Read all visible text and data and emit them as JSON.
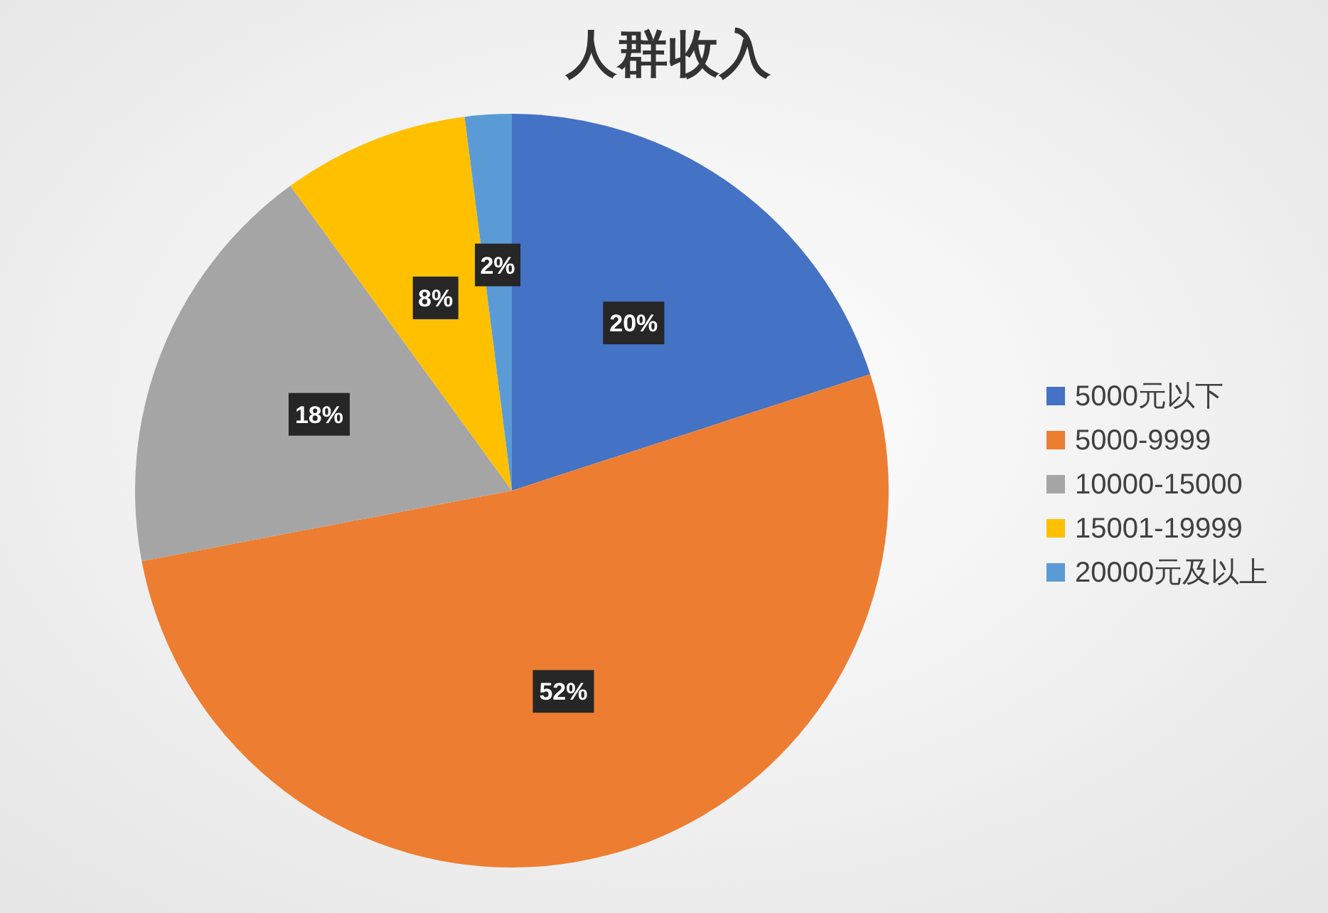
{
  "chart_data": {
    "type": "pie",
    "title": "人群收入",
    "categories": [
      "5000元以下",
      "5000-9999",
      "10000-15000",
      "15001-19999",
      "20000元及以上"
    ],
    "values": [
      20,
      52,
      18,
      8,
      2
    ],
    "colors": [
      "#4472c4",
      "#ed7d31",
      "#a5a5a5",
      "#ffc000",
      "#5b9bd5"
    ],
    "value_labels": [
      "20%",
      "52%",
      "18%",
      "8%",
      "2%"
    ],
    "legend": "right"
  }
}
